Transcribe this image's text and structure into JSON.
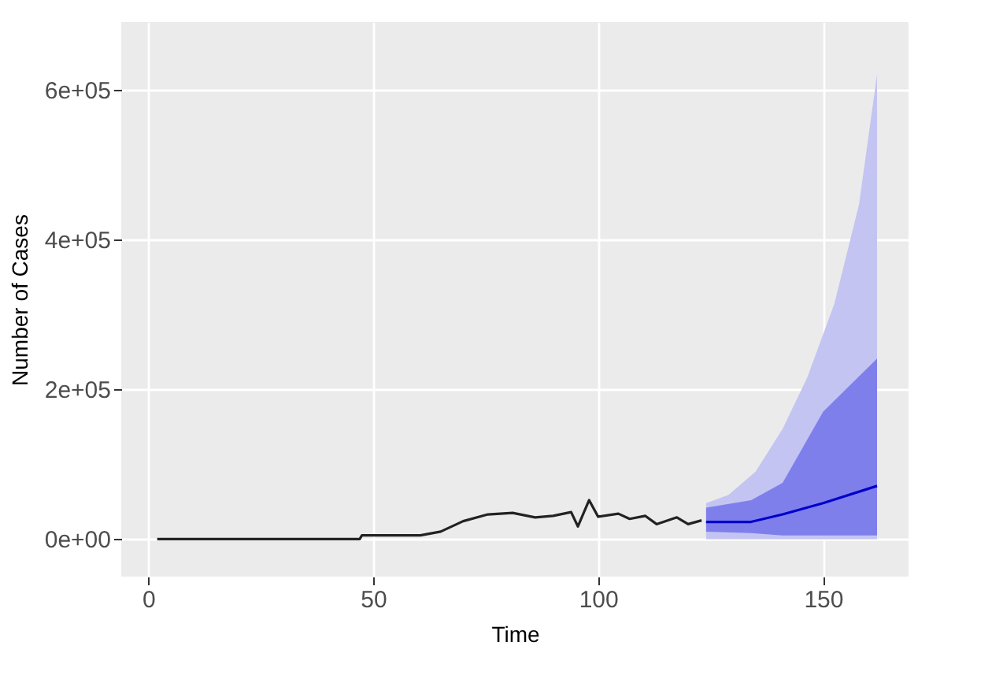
{
  "chart_data": {
    "type": "line",
    "xlabel": "Time",
    "ylabel": "Number of Cases",
    "xlim": [
      -6,
      169
    ],
    "ylim": [
      -50000,
      690000
    ],
    "xticks": [
      0,
      50,
      100,
      150
    ],
    "yticks": [
      {
        "value": 0,
        "label": "0e+00"
      },
      {
        "value": 200000,
        "label": "2e+05"
      },
      {
        "value": 400000,
        "label": "4e+05"
      },
      {
        "value": 600000,
        "label": "6e+05"
      }
    ],
    "grid": true,
    "series": [
      {
        "type": "area",
        "color": "#c4c4f2",
        "x": [
          124,
          129,
          135,
          141,
          146.5,
          152.5,
          158,
          162
        ],
        "values": [
          48000,
          59000,
          90000,
          147000,
          216000,
          314000,
          447000,
          620000
        ]
      },
      {
        "type": "line",
        "color": "#0000cc",
        "x": [
          124,
          134,
          141,
          150,
          162
        ],
        "values": [
          23000,
          23000,
          33000,
          48000,
          71000
        ],
        "lower": [
          10000,
          8000,
          5000,
          5000,
          5000
        ],
        "upper": [
          42000,
          52000,
          75000,
          170000,
          241000
        ]
      },
      {
        "color": "#222222",
        "x": [
          2,
          47,
          47.5,
          60.5,
          65,
          70,
          75.5,
          81,
          86,
          90,
          94,
          95.5,
          98,
          100,
          104.5,
          107,
          110.5,
          113,
          117.5,
          120,
          123
        ],
        "values": [
          0,
          0,
          5000,
          5000,
          10000,
          24000,
          33000,
          35000,
          29000,
          31000,
          36000,
          17000,
          52000,
          30000,
          34000,
          27000,
          31000,
          20000,
          29000,
          20000,
          25000
        ]
      }
    ]
  }
}
